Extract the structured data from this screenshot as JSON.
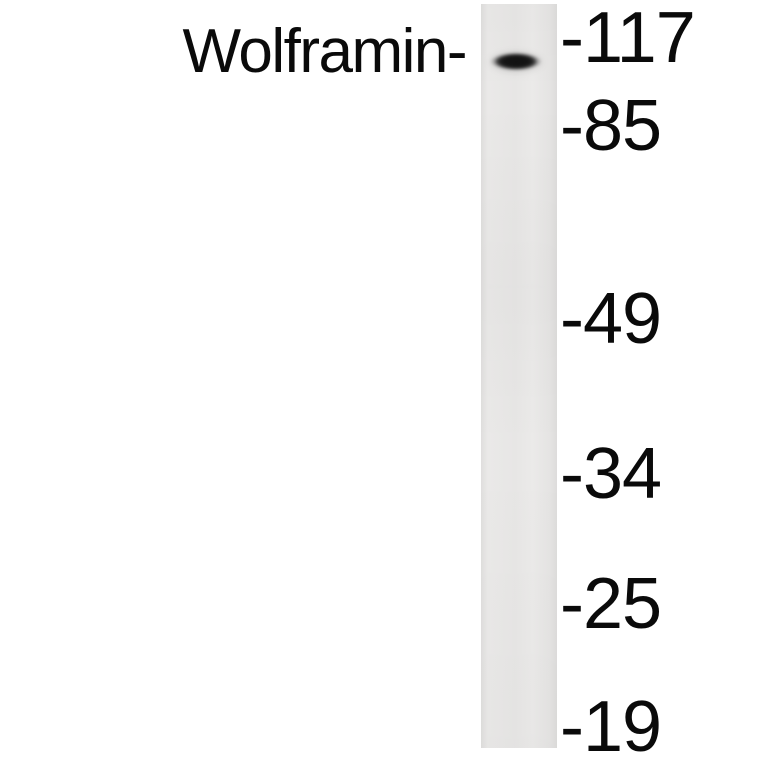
{
  "figure": {
    "type": "western-blot",
    "protein_label": "Wolframin-",
    "band": {
      "lane": 1,
      "approx_position_kda": "between 117 and 85, near 117"
    },
    "colors": {
      "background": "#ffffff",
      "lane": "#e8e7e6",
      "band": "#141414",
      "text": "#0a0a0a"
    }
  },
  "markers": {
    "items": [
      {
        "label": "-117",
        "value": 117
      },
      {
        "label": "-85",
        "value": 85
      },
      {
        "label": "-49",
        "value": 49
      },
      {
        "label": "-34",
        "value": 34
      },
      {
        "label": "-25",
        "value": 25
      },
      {
        "label": "-19",
        "value": 19
      }
    ]
  }
}
